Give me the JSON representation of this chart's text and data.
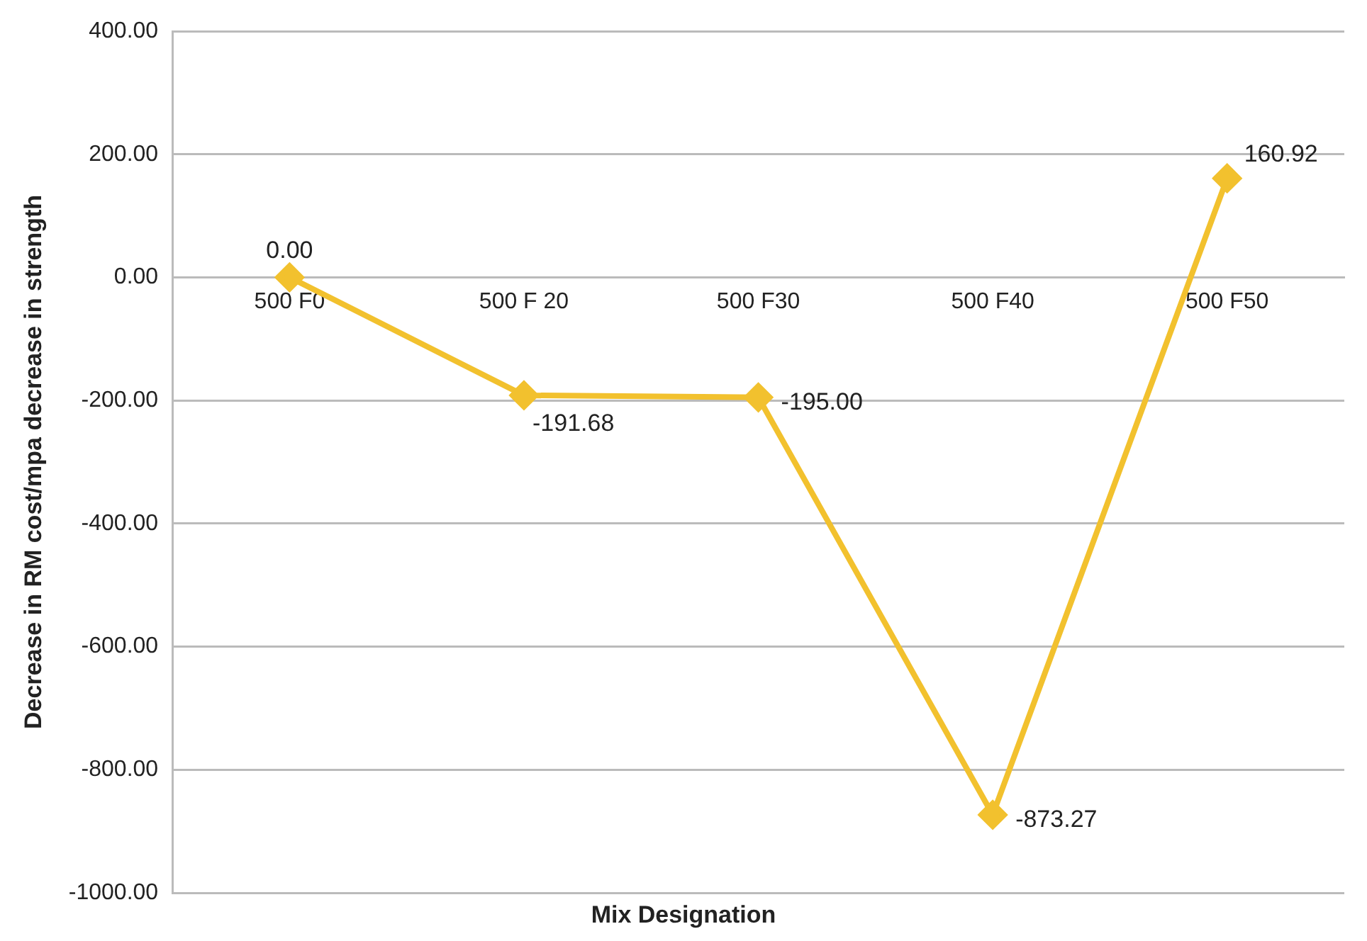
{
  "chart_data": {
    "type": "line",
    "xlabel": "Mix Designation",
    "ylabel": "Decrease in RM cost/mpa decrease in strength",
    "categories": [
      "500 F0",
      "500 F 20",
      "500 F30",
      "500 F40",
      "500 F50"
    ],
    "series": [
      {
        "color": "#f2c12e",
        "values": [
          0,
          -191.68,
          -195,
          -873.27,
          160.92
        ],
        "value_labels": [
          "0.00",
          "-191.68",
          "-195.00",
          "-873.27",
          "160.92"
        ]
      }
    ],
    "ylim": [
      -1000,
      400
    ],
    "yticks": [
      {
        "value": -1000,
        "label": "-1000.00"
      },
      {
        "value": -800,
        "label": "-800.00"
      },
      {
        "value": -600,
        "label": "-600.00"
      },
      {
        "value": -400,
        "label": "-400.00"
      },
      {
        "value": -200,
        "label": "-200.00"
      },
      {
        "value": 0,
        "label": "0.00"
      },
      {
        "value": 200,
        "label": "200.00"
      },
      {
        "value": 400,
        "label": "400.00"
      }
    ],
    "grid": "y",
    "legend": false,
    "marker": "diamond",
    "line_style": "solid"
  }
}
